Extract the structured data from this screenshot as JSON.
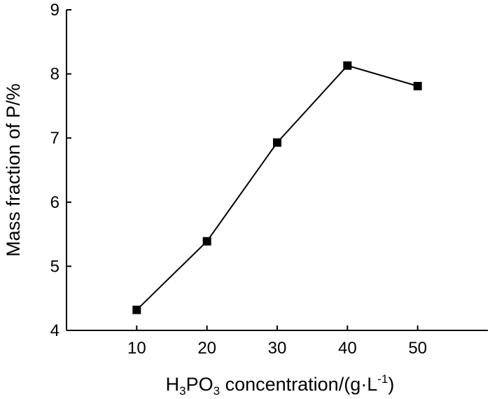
{
  "chart_data": {
    "type": "line",
    "x": [
      10,
      20,
      30,
      40,
      50
    ],
    "series": [
      {
        "values": [
          4.32,
          5.39,
          6.93,
          8.13,
          7.81
        ]
      }
    ],
    "xlabel": {
      "parts": [
        {
          "text": "H",
          "sub": false
        },
        {
          "text": "3",
          "sub": true
        },
        {
          "text": "PO",
          "sub": false
        },
        {
          "text": "3",
          "sub": true
        },
        {
          "text": " concentration/(g·L",
          "sub": false
        },
        {
          "text": "-1",
          "sup": true
        },
        {
          "text": ")",
          "sub": false
        }
      ]
    },
    "ylabel": "Mass fraction of P/%",
    "xlim": [
      0,
      60
    ],
    "ylim": [
      4,
      9
    ],
    "xticks": [
      10,
      20,
      30,
      40,
      50
    ],
    "yticks": [
      4,
      5,
      6,
      7,
      8,
      9
    ],
    "grid": false,
    "marker": "square",
    "colors": {
      "line": "#000000",
      "marker": "#000000",
      "axis": "#000000"
    }
  }
}
